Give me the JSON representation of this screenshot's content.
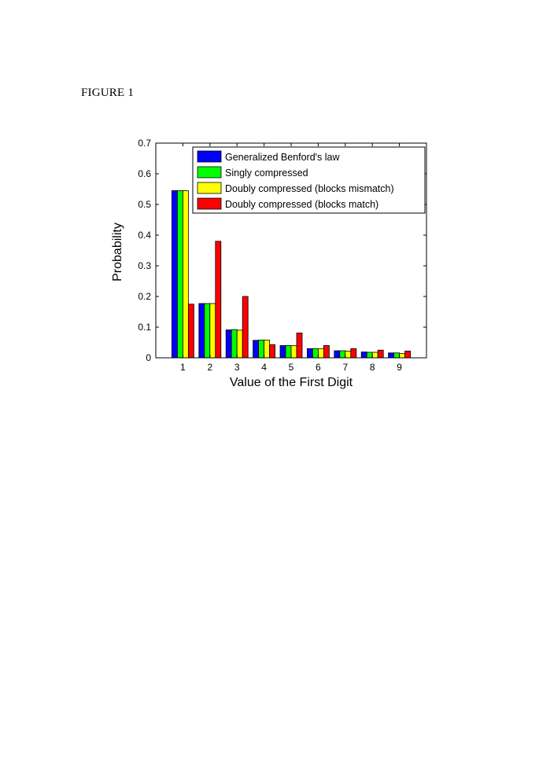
{
  "figure_label": "FIGURE 1",
  "colors": {
    "series": [
      "#0000ff",
      "#00ff00",
      "#ffff00",
      "#ff0000"
    ],
    "axis": "#000000",
    "background": "#ffffff"
  },
  "chart_data": {
    "type": "bar",
    "title": "",
    "xlabel": "Value of the First Digit",
    "ylabel": "Probability",
    "categories": [
      "1",
      "2",
      "3",
      "4",
      "5",
      "6",
      "7",
      "8",
      "9"
    ],
    "ylim": [
      0,
      0.7
    ],
    "yticks": [
      "0",
      "0.1",
      "0.2",
      "0.3",
      "0.4",
      "0.5",
      "0.6",
      "0.7"
    ],
    "grid": false,
    "legend_position": "top-right",
    "series": [
      {
        "name": "Generalized Benford's law",
        "color": "#0000ff",
        "values": [
          0.545,
          0.177,
          0.091,
          0.057,
          0.04,
          0.03,
          0.023,
          0.019,
          0.016
        ]
      },
      {
        "name": "Singly compressed",
        "color": "#00ff00",
        "values": [
          0.545,
          0.177,
          0.092,
          0.058,
          0.04,
          0.03,
          0.023,
          0.018,
          0.016
        ]
      },
      {
        "name": "Doubly compressed (blocks mismatch)",
        "color": "#ffff00",
        "values": [
          0.545,
          0.177,
          0.09,
          0.058,
          0.04,
          0.03,
          0.022,
          0.018,
          0.014
        ]
      },
      {
        "name": "Doubly compressed (blocks match)",
        "color": "#ff0000",
        "values": [
          0.175,
          0.38,
          0.2,
          0.043,
          0.081,
          0.04,
          0.03,
          0.025,
          0.022
        ]
      }
    ]
  }
}
